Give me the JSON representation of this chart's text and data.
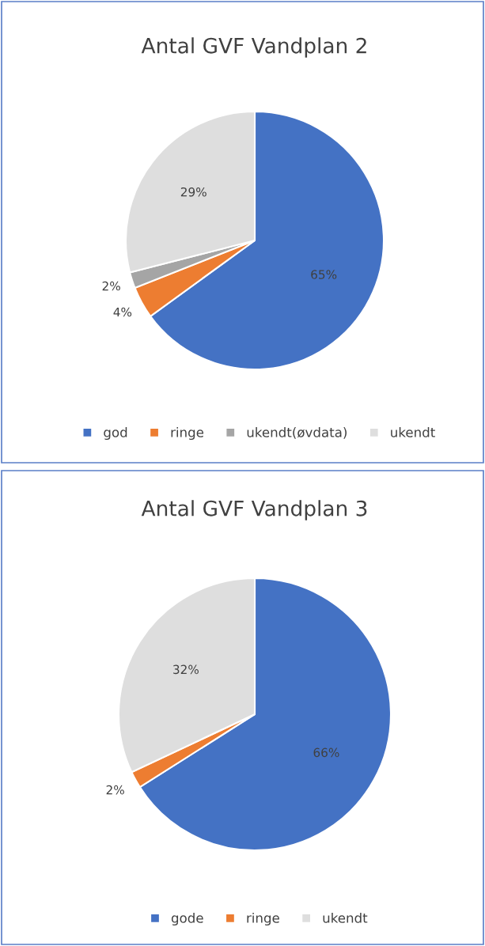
{
  "chart_data": [
    {
      "type": "pie",
      "title": "Antal GVF Vandplan 2",
      "categories": [
        "god",
        "ringe",
        "ukendt(øvdata)",
        "ukendt"
      ],
      "values": [
        65,
        4,
        2,
        29
      ],
      "colors": [
        "#4472c4",
        "#ed7d31",
        "#a5a5a5",
        "#dedede"
      ],
      "value_labels": [
        "65%",
        "4%",
        "2%",
        "29%"
      ],
      "legend": "bottom"
    },
    {
      "type": "pie",
      "title": "Antal GVF Vandplan 3",
      "categories": [
        "gode",
        "ringe",
        "ukendt"
      ],
      "values": [
        66,
        2,
        32
      ],
      "colors": [
        "#4472c4",
        "#ed7d31",
        "#dedede"
      ],
      "value_labels": [
        "66%",
        "2%",
        "32%"
      ],
      "legend": "bottom"
    }
  ]
}
